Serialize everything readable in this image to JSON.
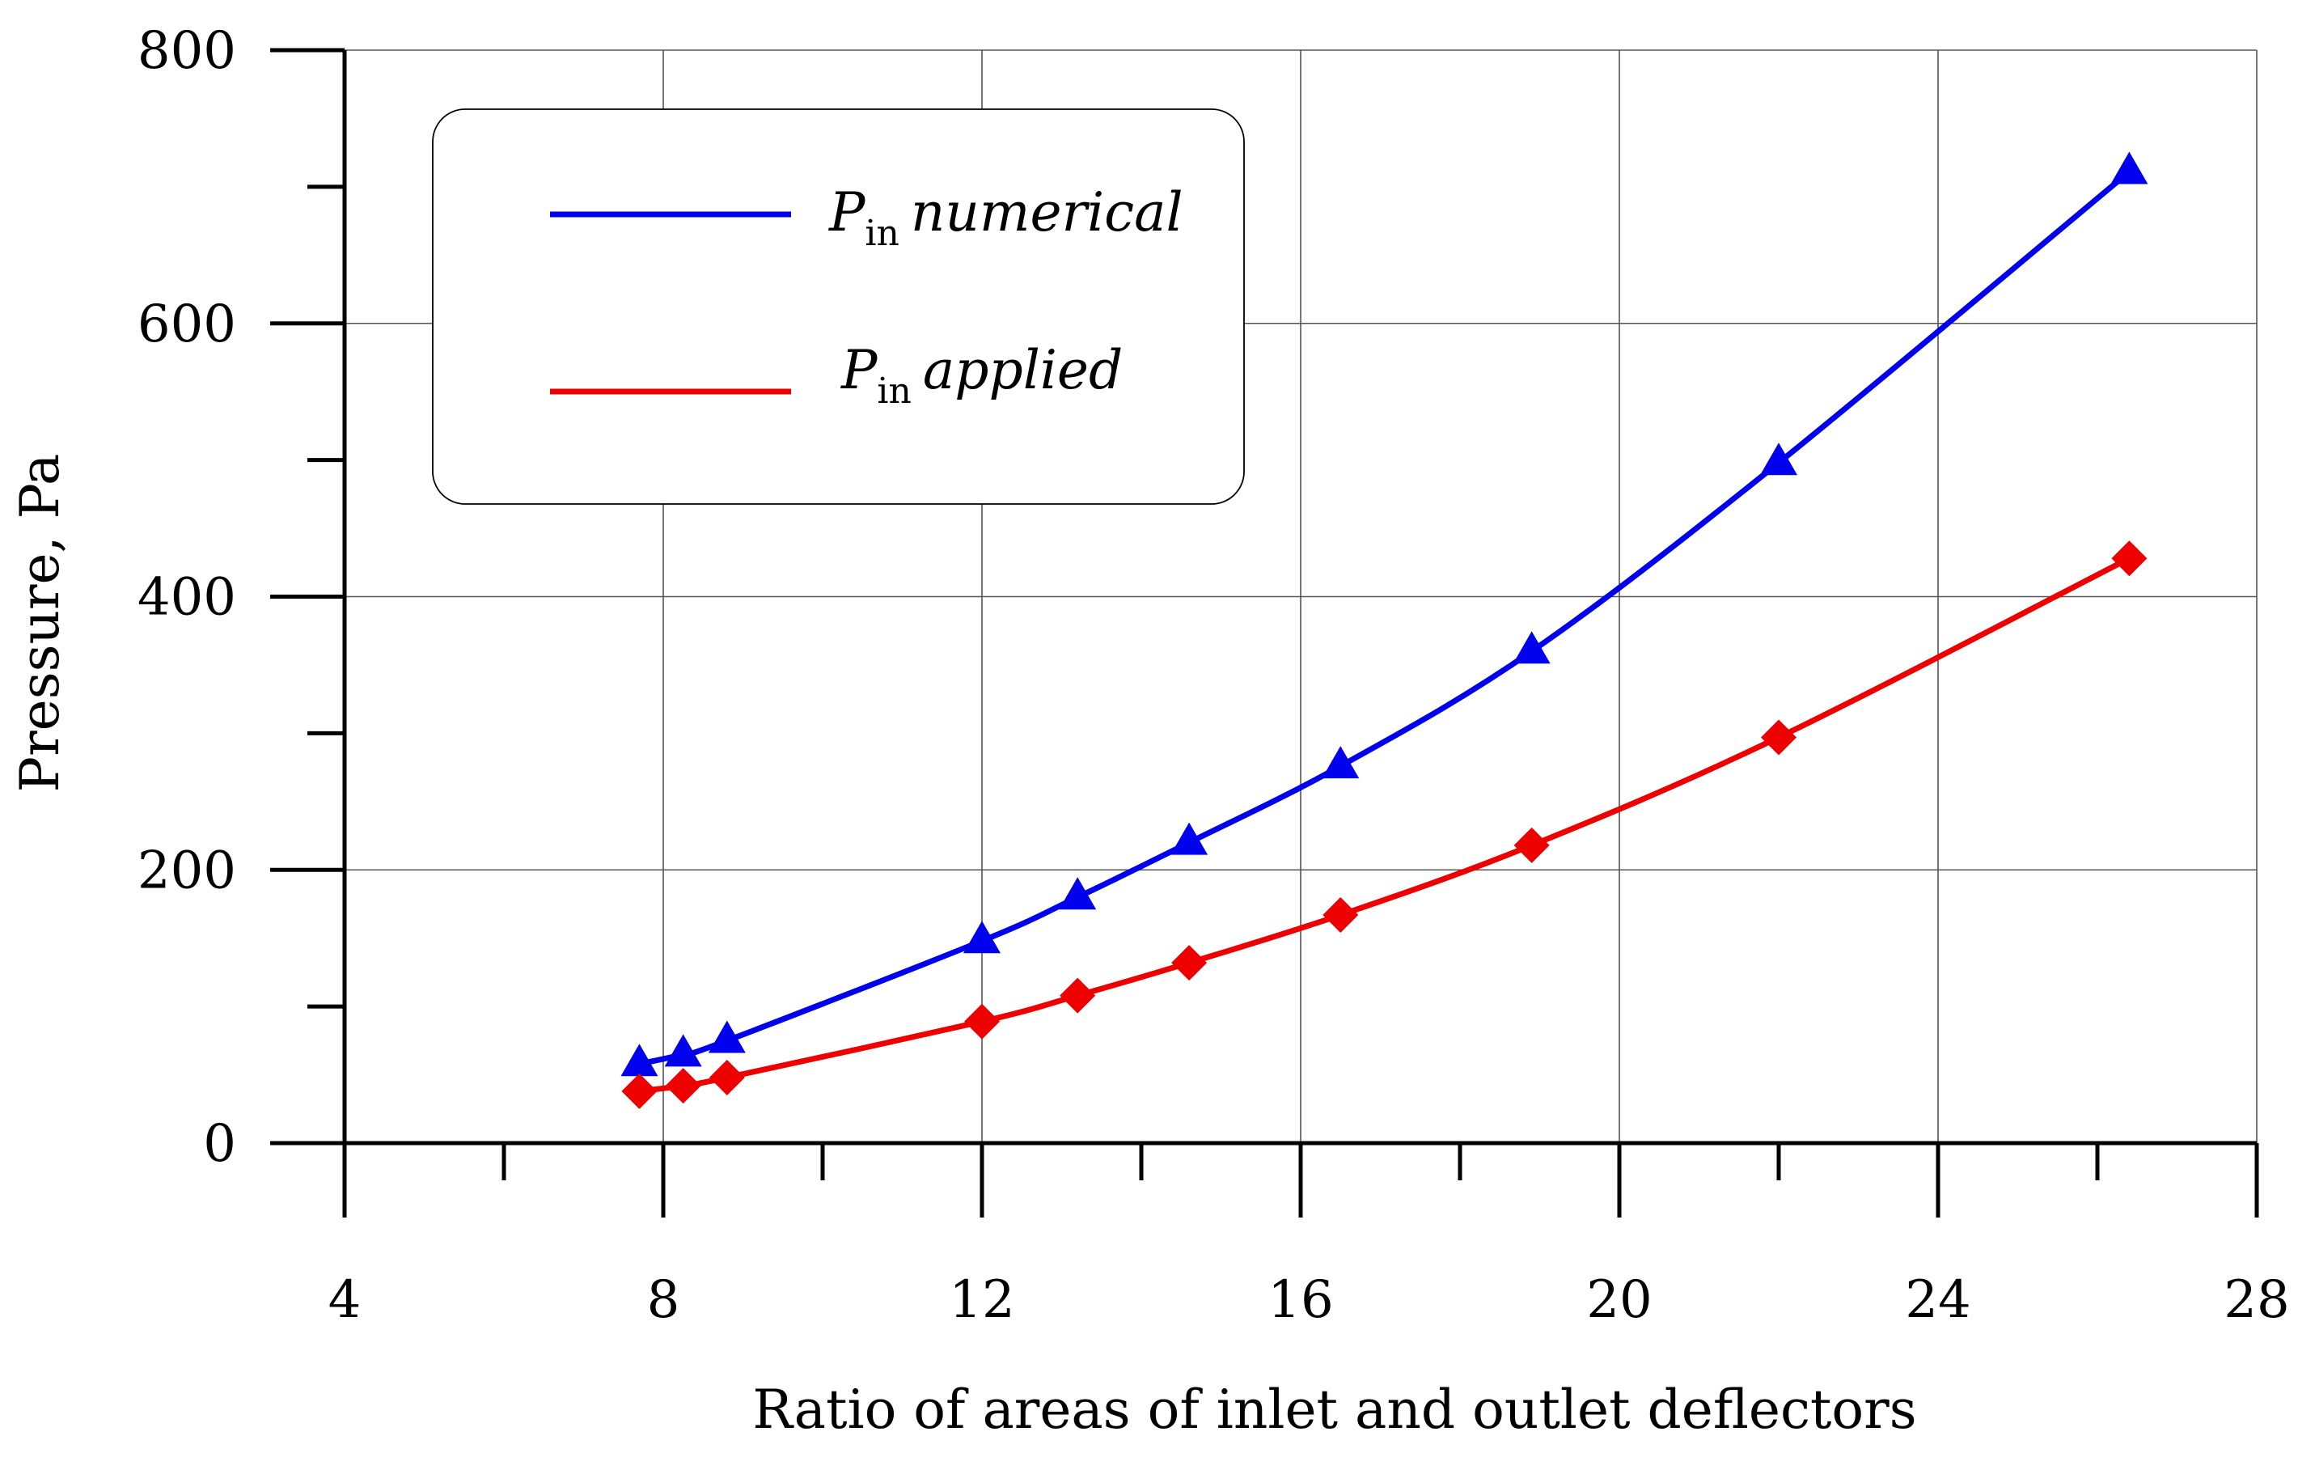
{
  "chart_data": {
    "type": "line",
    "title": "",
    "xlabel": "Ratio of areas of inlet and outlet deflectors",
    "ylabel": "Pressure, Pa",
    "xlim": [
      4,
      28
    ],
    "ylim": [
      0,
      800
    ],
    "x_ticks": [
      "4",
      "8",
      "12",
      "16",
      "20",
      "24",
      "28"
    ],
    "y_ticks": [
      "0",
      "200",
      "400",
      "600",
      "800"
    ],
    "grid": true,
    "legend_position": "top-left",
    "series": [
      {
        "name": "P_in numerical",
        "legend_p": "P",
        "legend_sub": "in",
        "legend_rest": "numerical",
        "color": "#0000ee",
        "marker": "triangle",
        "x": [
          7.7,
          8.25,
          8.8,
          12.0,
          13.2,
          14.6,
          16.5,
          18.9,
          22.0,
          26.4
        ],
        "y": [
          58,
          65,
          75,
          148,
          180,
          220,
          276,
          360,
          498,
          711
        ]
      },
      {
        "name": "P_in applied",
        "legend_p": "P",
        "legend_sub": "in",
        "legend_rest": "applied",
        "color": "#ee0000",
        "marker": "diamond",
        "x": [
          7.7,
          8.25,
          8.8,
          12.0,
          13.2,
          14.6,
          16.5,
          18.9,
          22.0,
          26.4
        ],
        "y": [
          38,
          42,
          48,
          89,
          108,
          132,
          167,
          218,
          297,
          428
        ]
      }
    ]
  }
}
